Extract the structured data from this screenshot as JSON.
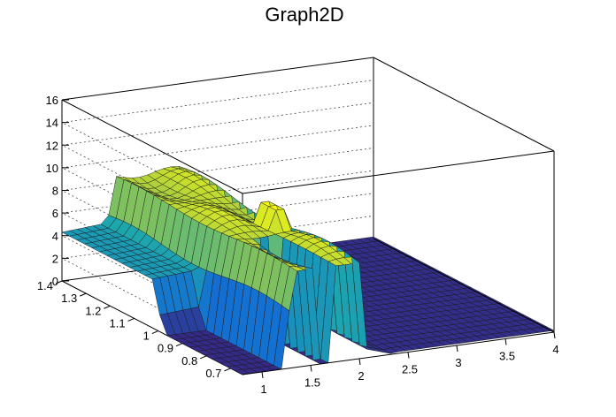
{
  "chart_data": {
    "type": "surface",
    "title": "Graph2D",
    "xlabel": "",
    "ylabel": "",
    "zlabel": "",
    "xlim": [
      0.8,
      4.0
    ],
    "ylim": [
      0.65,
      1.4
    ],
    "zlim": [
      0,
      16
    ],
    "x_ticks": [
      "1",
      "1.5",
      "2",
      "2.5",
      "3",
      "3.5",
      "4"
    ],
    "y_ticks": [
      "0.7",
      "0.8",
      "0.9",
      "1",
      "1.1",
      "1.2",
      "1.3",
      "1.4"
    ],
    "z_ticks": [
      "0",
      "2",
      "4",
      "6",
      "8",
      "10",
      "12",
      "14",
      "16"
    ],
    "grid": true,
    "colormap": "viridis-like (dark blue to yellow)",
    "colors": {
      "low": "#352a87",
      "high": "#f9fb0e"
    },
    "surface_description_values": {
      "plateau_x_range": [
        1.3,
        2.0
      ],
      "plateau_y_range": [
        0.7,
        1.4
      ],
      "plateau_height": 8.5,
      "rim_at_low_x_height": 4.3,
      "peak_height": 10.2,
      "floor_height": 0
    }
  }
}
